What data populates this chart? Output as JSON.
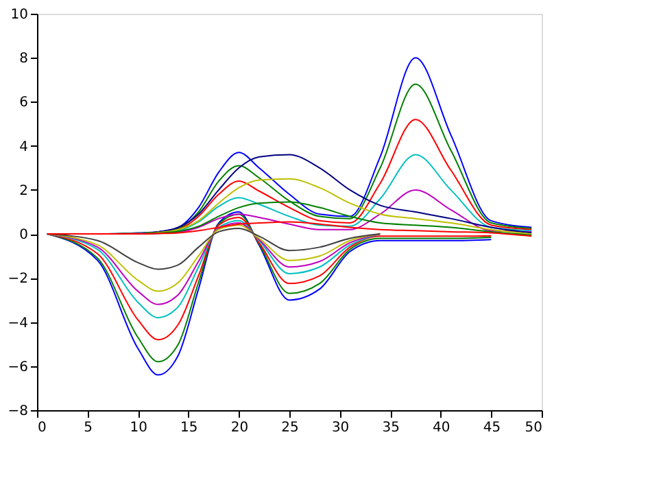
{
  "chart_data": {
    "type": "line",
    "x": [
      1,
      6,
      10,
      12,
      14,
      16,
      18,
      20,
      22,
      25,
      28,
      31,
      34,
      37.5,
      41,
      45,
      49
    ],
    "xlim": [
      0,
      50
    ],
    "xticks": [
      0,
      5,
      10,
      15,
      20,
      25,
      30,
      35,
      40,
      45,
      50
    ],
    "ylim": [
      -8,
      10
    ],
    "yticks": [
      -8,
      -6,
      -4,
      -2,
      0,
      2,
      4,
      6,
      8,
      10
    ],
    "grid": false,
    "legend": false,
    "marker": "none",
    "line_style": "solid",
    "series": [
      {
        "color": "#0000ff",
        "values": [
          0,
          -1.2,
          -5.2,
          -6.4,
          -5.5,
          -2.5,
          0.5,
          1.0,
          -0.5,
          -3.0,
          -2.5,
          -0.8,
          -0.3,
          -0.3,
          -0.3,
          -0.25,
          null
        ]
      },
      {
        "color": "#008000",
        "values": [
          0,
          -1.1,
          -4.7,
          -5.8,
          -5.0,
          -2.2,
          0.45,
          0.9,
          -0.45,
          -2.7,
          -2.25,
          -0.7,
          -0.2,
          -0.2,
          -0.2,
          -0.15,
          null
        ]
      },
      {
        "color": "#ff0000",
        "values": [
          0,
          -0.9,
          -3.9,
          -4.8,
          -4.1,
          -1.9,
          0.4,
          0.75,
          -0.4,
          -2.25,
          -1.9,
          -0.6,
          -0.1,
          -0.1,
          -0.1,
          -0.08,
          null
        ]
      },
      {
        "color": "#00bfbf",
        "values": [
          0,
          -0.7,
          -3.1,
          -3.8,
          -3.3,
          -1.5,
          0.3,
          0.6,
          -0.3,
          -1.8,
          -1.5,
          -0.5,
          0,
          null,
          null,
          null,
          null
        ]
      },
      {
        "color": "#bf00bf",
        "values": [
          0,
          -0.6,
          -2.6,
          -3.2,
          -2.75,
          -1.25,
          0.25,
          0.5,
          -0.25,
          -1.5,
          -1.25,
          -0.4,
          0,
          null,
          null,
          null,
          null
        ]
      },
      {
        "color": "#bfbf00",
        "values": [
          0,
          -0.5,
          -2.1,
          -2.6,
          -2.2,
          -1.0,
          0.2,
          0.4,
          -0.2,
          -1.2,
          -1.0,
          -0.3,
          0,
          null,
          null,
          null,
          null
        ]
      },
      {
        "color": "#404040",
        "values": [
          0,
          -0.3,
          -1.3,
          -1.6,
          -1.4,
          -0.6,
          0.1,
          0.25,
          -0.1,
          -0.75,
          -0.6,
          -0.2,
          0,
          null,
          null,
          null,
          null
        ]
      },
      {
        "color": "#0000ff",
        "values": [
          0,
          0,
          0.05,
          0.1,
          0.3,
          1.2,
          2.8,
          3.7,
          3.0,
          1.8,
          0.9,
          0.8,
          3.5,
          8.0,
          4.5,
          0.6,
          0.3
        ]
      },
      {
        "color": "#008000",
        "values": [
          0,
          0,
          0.04,
          0.08,
          0.25,
          1.0,
          2.4,
          3.1,
          2.55,
          1.5,
          0.8,
          0.7,
          3.0,
          6.8,
          3.8,
          0.5,
          0.25
        ]
      },
      {
        "color": "#ff0000",
        "values": [
          0,
          0,
          0.03,
          0.06,
          0.2,
          0.8,
          1.8,
          2.4,
          1.95,
          1.2,
          0.6,
          0.5,
          2.3,
          5.2,
          2.9,
          0.4,
          0.2
        ]
      },
      {
        "color": "#00bfbf",
        "values": [
          0,
          0,
          0.02,
          0.05,
          0.15,
          0.55,
          1.25,
          1.65,
          1.35,
          0.8,
          0.4,
          0.35,
          1.6,
          3.6,
          2.0,
          0.3,
          0.15
        ]
      },
      {
        "color": "#bf00bf",
        "values": [
          0,
          0,
          0.01,
          0.03,
          0.08,
          0.3,
          0.7,
          0.9,
          0.75,
          0.45,
          0.2,
          0.2,
          0.9,
          2.0,
          1.1,
          0.15,
          0.1
        ]
      },
      {
        "color": "#000080",
        "values": [
          0,
          0,
          0,
          0.1,
          0.3,
          0.9,
          2.0,
          3.0,
          3.5,
          3.6,
          3.0,
          2.0,
          1.3,
          1.0,
          0.7,
          0.3,
          0.05
        ]
      },
      {
        "color": "#bfbf00",
        "values": [
          0,
          0,
          0,
          0.07,
          0.2,
          0.6,
          1.4,
          2.1,
          2.45,
          2.5,
          2.1,
          1.4,
          0.9,
          0.7,
          0.5,
          0.2,
          0
        ]
      },
      {
        "color": "#008000",
        "values": [
          0,
          0,
          0,
          0.04,
          0.12,
          0.35,
          0.8,
          1.2,
          1.4,
          1.45,
          1.2,
          0.8,
          0.5,
          0.4,
          0.3,
          0.1,
          -0.05
        ]
      },
      {
        "color": "#ff0000",
        "values": [
          0,
          0,
          0,
          0.02,
          0.05,
          0.15,
          0.3,
          0.45,
          0.5,
          0.55,
          0.45,
          0.3,
          0.2,
          0.15,
          0.1,
          0.05,
          -0.1
        ]
      }
    ]
  }
}
